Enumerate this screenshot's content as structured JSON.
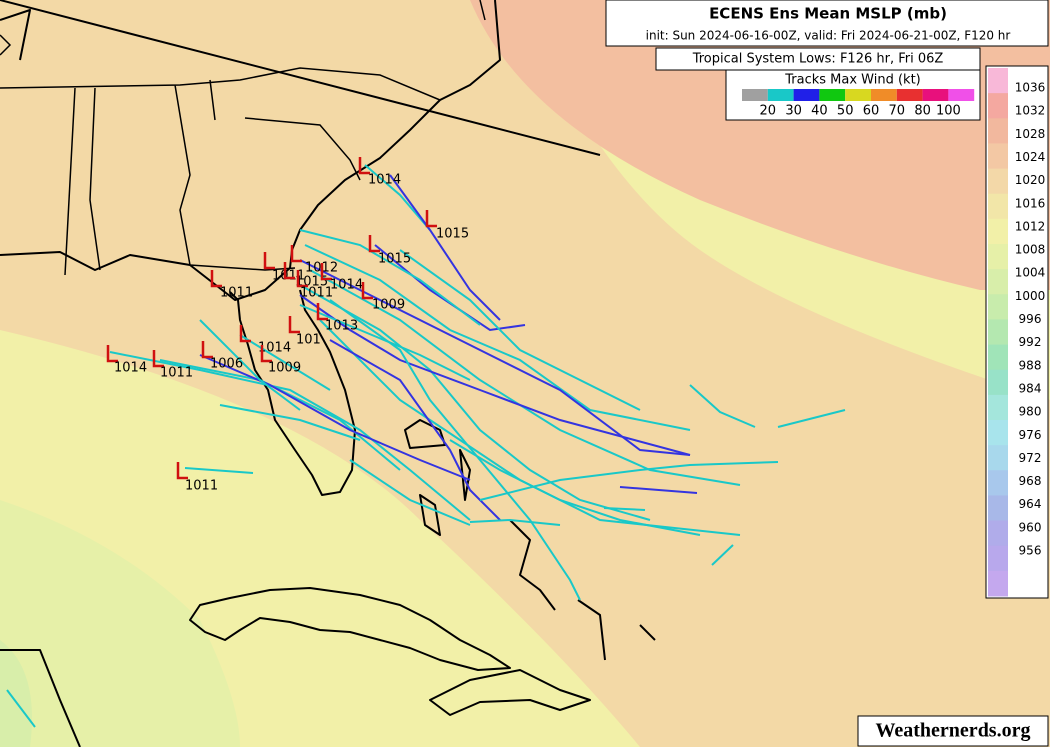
{
  "header": {
    "title": "ECENS Ens Mean MSLP (mb)",
    "subtitle": "init: Sun 2024-06-16-00Z, valid: Fri 2024-06-21-00Z, F120 hr",
    "lows_title": "Tropical System Lows: F126 hr, Fri 06Z"
  },
  "wind_legend": {
    "title": "Tracks Max Wind (kt)",
    "labels": [
      "20",
      "30",
      "40",
      "50",
      "60",
      "70",
      "80",
      "100"
    ],
    "colors": [
      "#a0a0a0",
      "#19c8c8",
      "#2020e8",
      "#10c810",
      "#d8d820",
      "#f08c28",
      "#e83030",
      "#e8107c",
      "#f050e8"
    ]
  },
  "colorbar": {
    "labels": [
      "1036",
      "1032",
      "1028",
      "1024",
      "1020",
      "1016",
      "1012",
      "1008",
      "1004",
      "1000",
      "996",
      "992",
      "988",
      "984",
      "980",
      "976",
      "972",
      "968",
      "964",
      "960",
      "956"
    ],
    "colors": [
      "#f8b8d8",
      "#f4a8a0",
      "#f2b89e",
      "#f3c8a4",
      "#f3d8a8",
      "#f2e6a8",
      "#f2f0a8",
      "#e6f0a8",
      "#d8eeaa",
      "#c8ecac",
      "#b4e8b0",
      "#a0e4b8",
      "#98e2c8",
      "#a4e6dc",
      "#a8e4ec",
      "#a8d8ec",
      "#a8c8ec",
      "#a8b8e8",
      "#b0acea",
      "#b8a8ec",
      "#c4a8ee"
    ]
  },
  "lows": [
    "1014",
    "1015",
    "1015",
    "1011",
    "1012",
    "1015",
    "1014",
    "1011",
    "1011",
    "1009",
    "1013",
    "101",
    "1014",
    "1009",
    "1006",
    "1014",
    "1011",
    "1011"
  ],
  "watermark": "Weathernerds.org"
}
